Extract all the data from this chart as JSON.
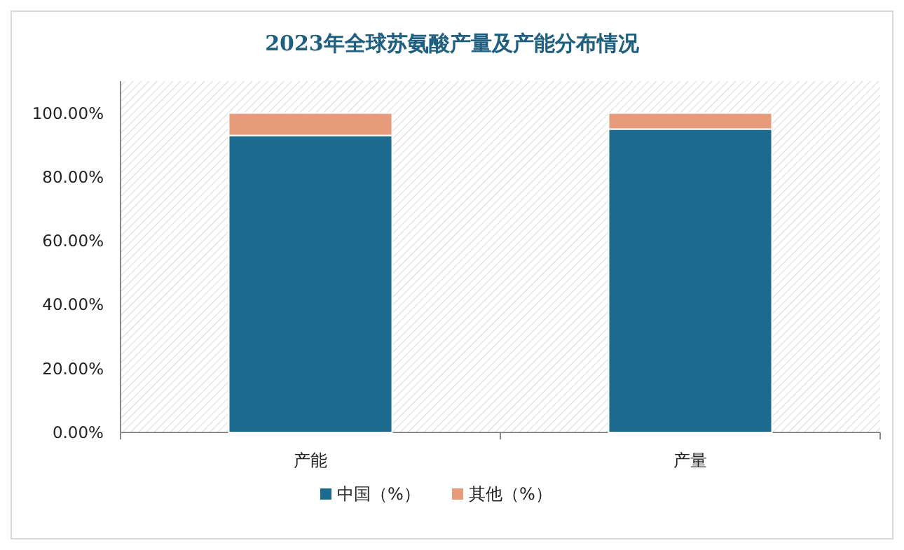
{
  "chart_data": {
    "type": "bar",
    "title": "2023年全球苏氨酸产量及产能分布情况",
    "categories": [
      "产能",
      "产量"
    ],
    "stacked": true,
    "series": [
      {
        "name": "中国（%）",
        "color": "#1c6b8f",
        "values": [
          93,
          95
        ]
      },
      {
        "name": "其他（%）",
        "color": "#e89b7a",
        "values": [
          7,
          5
        ]
      }
    ],
    "ylim": [
      0,
      110
    ],
    "yticks": [
      {
        "value": 0,
        "label": "0.00%"
      },
      {
        "value": 20,
        "label": "20.00%"
      },
      {
        "value": 40,
        "label": "40.00%"
      },
      {
        "value": 60,
        "label": "60.00%"
      },
      {
        "value": 80,
        "label": "80.00%"
      },
      {
        "value": 100,
        "label": "100.00%"
      }
    ],
    "grid": false,
    "legend": "bottom"
  }
}
